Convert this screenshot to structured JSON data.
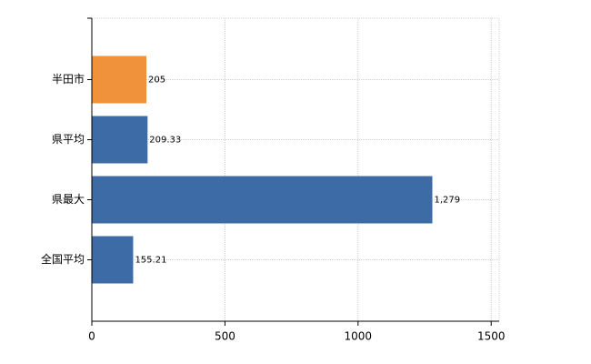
{
  "chart_data": {
    "type": "bar",
    "orientation": "horizontal",
    "categories": [
      "半田市",
      "県平均",
      "県最大",
      "全国平均"
    ],
    "values": [
      205,
      209.33,
      1279,
      155.21
    ],
    "value_labels": [
      "205",
      "209.33",
      "1,279",
      "155.21"
    ],
    "colors": [
      "#f0923b",
      "#3c6ba6",
      "#3c6ba6",
      "#3c6ba6"
    ],
    "xlim": [
      0,
      1530
    ],
    "xticks": [
      0,
      500,
      1000,
      1500
    ],
    "grid": true
  }
}
